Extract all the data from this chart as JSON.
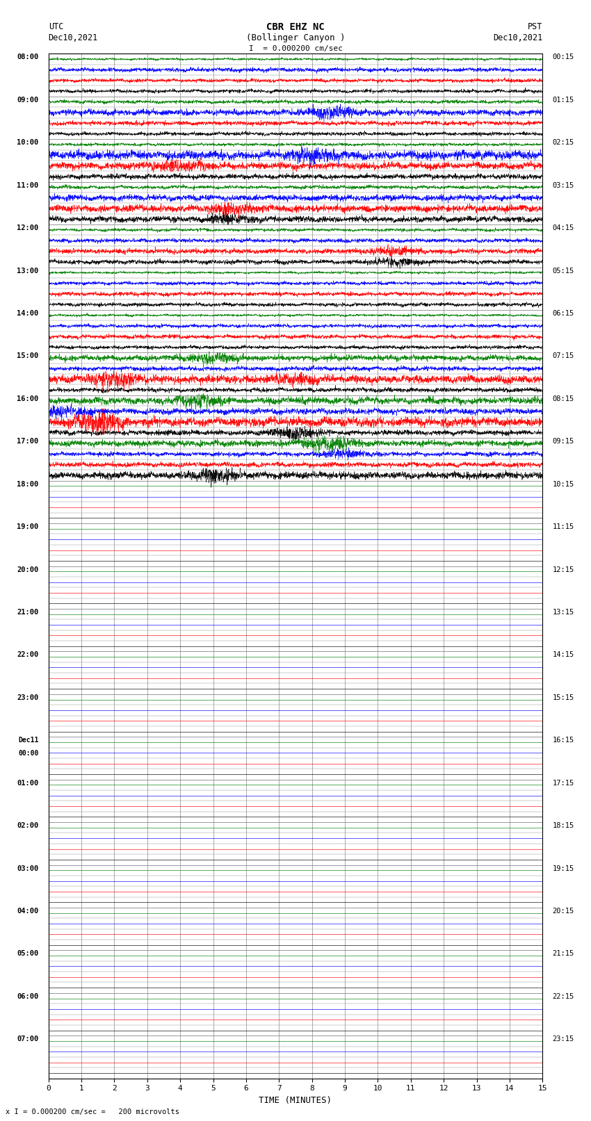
{
  "title_line1": "CBR EHZ NC",
  "title_line2": "(Bollinger Canyon )",
  "title_line3": "I  = 0.000200 cm/sec",
  "left_label_top": "UTC",
  "left_label_date": "Dec10,2021",
  "right_label_top": "PST",
  "right_label_date": "Dec10,2021",
  "xlabel": "TIME (MINUTES)",
  "footer_text": "x I = 0.000200 cm/sec =   200 microvolts",
  "xlim": [
    0,
    15
  ],
  "num_rows": 24,
  "traces_per_row": 4,
  "trace_colors": [
    "black",
    "red",
    "blue",
    "green"
  ],
  "utc_labels": [
    "08:00",
    "09:00",
    "10:00",
    "11:00",
    "12:00",
    "13:00",
    "14:00",
    "15:00",
    "16:00",
    "17:00",
    "18:00",
    "19:00",
    "20:00",
    "21:00",
    "22:00",
    "23:00",
    "Dec11\n00:00",
    "01:00",
    "02:00",
    "03:00",
    "04:00",
    "05:00",
    "06:00",
    "07:00"
  ],
  "pst_labels": [
    "00:15",
    "01:15",
    "02:15",
    "03:15",
    "04:15",
    "05:15",
    "06:15",
    "07:15",
    "08:15",
    "09:15",
    "10:15",
    "11:15",
    "12:15",
    "13:15",
    "14:15",
    "15:15",
    "16:15",
    "17:15",
    "18:15",
    "19:15",
    "20:15",
    "21:15",
    "22:15",
    "23:15"
  ],
  "background_color": "#ffffff",
  "grid_color": "#888888",
  "active_rows": [
    0,
    1,
    2,
    3,
    4,
    5,
    6,
    7,
    8,
    9
  ],
  "num_active_rows": 10
}
